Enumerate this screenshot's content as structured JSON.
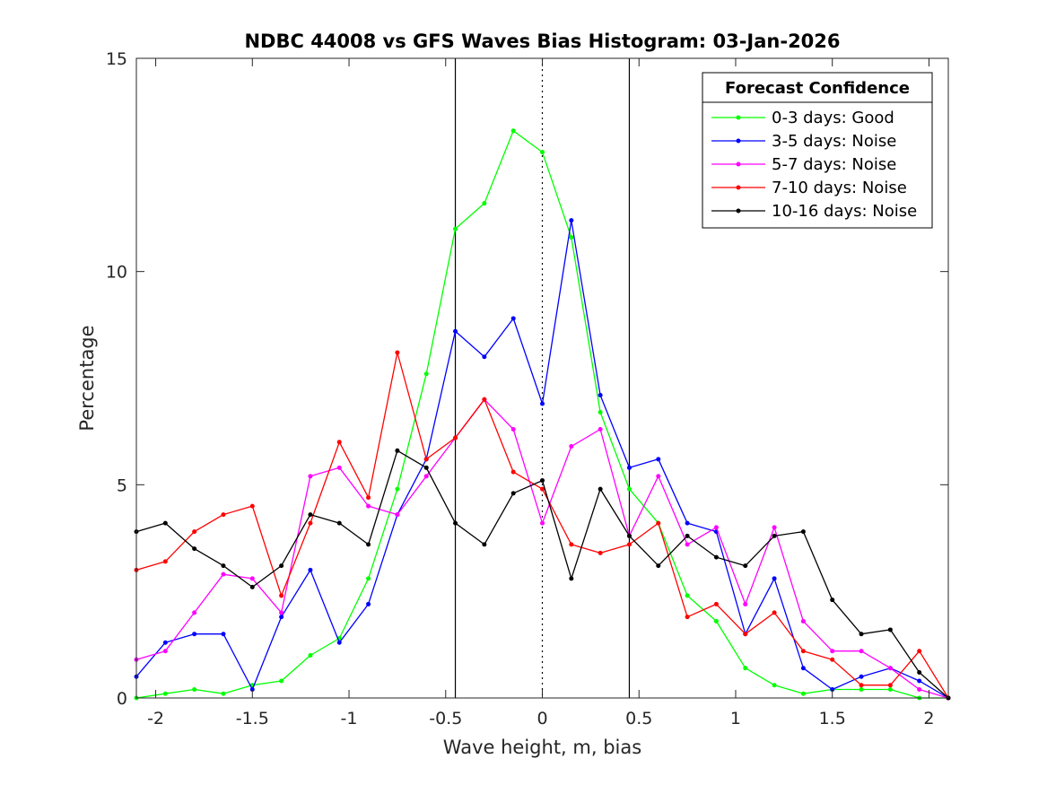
{
  "chart_data": {
    "type": "line",
    "title": "NDBC 44008 vs GFS Waves Bias Histogram: 03-Jan-2026",
    "xlabel": "Wave height, m, bias",
    "ylabel": "Percentage",
    "xlim": [
      -2.1,
      2.1
    ],
    "ylim": [
      0,
      15
    ],
    "xticks": [
      -2,
      -1.5,
      -1,
      -0.5,
      0,
      0.5,
      1,
      1.5,
      2
    ],
    "xtick_labels": [
      "-2",
      "-1.5",
      "-1",
      "-0.5",
      "0",
      "0.5",
      "1",
      "1.5",
      "2"
    ],
    "yticks": [
      0,
      5,
      10,
      15
    ],
    "ytick_labels": [
      "0",
      "5",
      "10",
      "15"
    ],
    "grid": false,
    "vertical_lines": [
      {
        "x": -0.45,
        "style": "solid",
        "color": "#000000"
      },
      {
        "x": 0,
        "style": "dotted",
        "color": "#000000"
      },
      {
        "x": 0.45,
        "style": "solid",
        "color": "#000000"
      }
    ],
    "legend": {
      "title": "Forecast Confidence",
      "location": "top-right"
    },
    "x": [
      -2.1,
      -1.95,
      -1.8,
      -1.65,
      -1.5,
      -1.35,
      -1.2,
      -1.05,
      -0.9,
      -0.75,
      -0.6,
      -0.45,
      -0.3,
      -0.15,
      0,
      0.15,
      0.3,
      0.45,
      0.6,
      0.75,
      0.9,
      1.05,
      1.2,
      1.35,
      1.5,
      1.65,
      1.8,
      1.95,
      2.1
    ],
    "series": [
      {
        "name": "0-3 days: Good",
        "color": "#00ff00",
        "values": [
          0.0,
          0.1,
          0.2,
          0.1,
          0.3,
          0.4,
          1.0,
          1.4,
          2.8,
          4.9,
          7.6,
          11.0,
          11.6,
          13.3,
          12.8,
          10.8,
          6.7,
          4.9,
          4.1,
          2.4,
          1.8,
          0.7,
          0.3,
          0.1,
          0.2,
          0.2,
          0.2,
          0.0,
          0.0
        ]
      },
      {
        "name": "3-5 days: Noise",
        "color": "#0000ff",
        "values": [
          0.5,
          1.3,
          1.5,
          1.5,
          0.2,
          1.9,
          3.0,
          1.3,
          2.2,
          4.3,
          5.6,
          8.6,
          8.0,
          8.9,
          6.9,
          11.2,
          7.1,
          5.4,
          5.6,
          4.1,
          3.9,
          1.5,
          2.8,
          0.7,
          0.2,
          0.5,
          0.7,
          0.4,
          0.0
        ]
      },
      {
        "name": "5-7 days: Noise",
        "color": "#ff00ff",
        "values": [
          0.9,
          1.1,
          2.0,
          2.9,
          2.8,
          2.0,
          5.2,
          5.4,
          4.5,
          4.3,
          5.2,
          6.1,
          7.0,
          6.3,
          4.1,
          5.9,
          6.3,
          3.8,
          5.2,
          3.6,
          4.0,
          2.2,
          4.0,
          1.8,
          1.1,
          1.1,
          0.7,
          0.2,
          0.0
        ]
      },
      {
        "name": "7-10 days: Noise",
        "color": "#ff0000",
        "values": [
          3.0,
          3.2,
          3.9,
          4.3,
          4.5,
          2.4,
          4.1,
          6.0,
          4.7,
          8.1,
          5.6,
          6.1,
          7.0,
          5.3,
          4.9,
          3.6,
          3.4,
          3.6,
          4.1,
          1.9,
          2.2,
          1.5,
          2.0,
          1.1,
          0.9,
          0.3,
          0.3,
          1.1,
          0.0
        ]
      },
      {
        "name": "10-16 days: Noise",
        "color": "#000000",
        "values": [
          3.9,
          4.1,
          3.5,
          3.1,
          2.6,
          3.1,
          4.3,
          4.1,
          3.6,
          5.8,
          5.4,
          4.1,
          3.6,
          4.8,
          5.1,
          2.8,
          4.9,
          3.8,
          3.1,
          3.8,
          3.3,
          3.1,
          3.8,
          3.9,
          2.3,
          1.5,
          1.6,
          0.6,
          0.0
        ]
      }
    ]
  }
}
